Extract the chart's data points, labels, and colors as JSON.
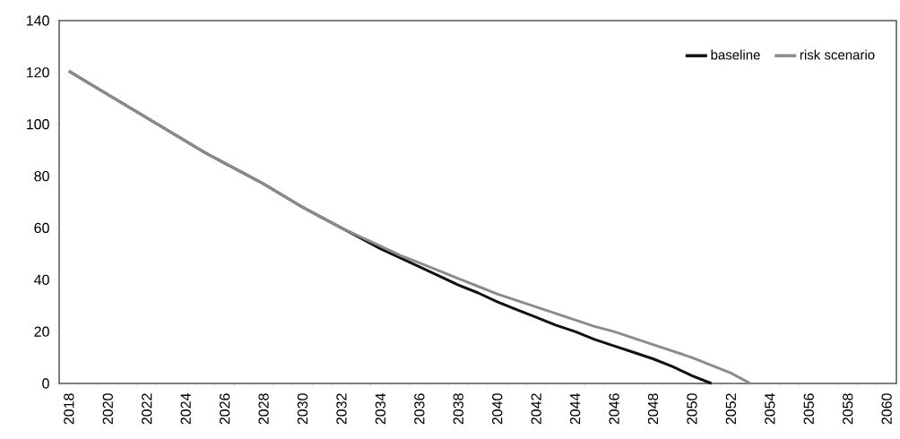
{
  "chart_data": {
    "type": "line",
    "categories": [
      "2018",
      null,
      "2020",
      null,
      "2022",
      null,
      "2024",
      null,
      "2026",
      null,
      "2028",
      null,
      "2030",
      null,
      "2032",
      null,
      "2034",
      null,
      "2036",
      null,
      "2038",
      null,
      "2040",
      null,
      "2042",
      null,
      "2044",
      null,
      "2046",
      null,
      "2048",
      null,
      "2050",
      null,
      "2052",
      null,
      "2054",
      null,
      "2056",
      null,
      "2058",
      null,
      "2060"
    ],
    "series": [
      {
        "name": "baseline",
        "color": "#111111",
        "values": [
          120.5,
          116,
          111.5,
          107,
          102.5,
          98,
          93.5,
          89,
          85,
          81,
          77,
          72.5,
          68,
          64,
          60,
          56,
          52,
          48.5,
          45,
          41.5,
          38,
          35,
          31.5,
          28.5,
          25.5,
          22.5,
          20,
          17,
          14.5,
          12,
          9.5,
          6.5,
          3,
          0,
          null,
          null,
          null,
          null,
          null,
          null,
          null,
          null,
          null
        ]
      },
      {
        "name": "risk scenario",
        "color": "#8c8c8c",
        "values": [
          120.5,
          116,
          111.5,
          107,
          102.5,
          98,
          93.5,
          89,
          85,
          81,
          77,
          72.5,
          68,
          64,
          60,
          56.5,
          53,
          49.5,
          46.5,
          43.5,
          40.5,
          37.5,
          34.5,
          32,
          29.5,
          27,
          24.5,
          22,
          20,
          17.5,
          15,
          12.5,
          10,
          7,
          4,
          0,
          null,
          null,
          null,
          null,
          null,
          null,
          null
        ]
      }
    ],
    "ylim": [
      0,
      140
    ],
    "yticks": [
      0,
      20,
      40,
      60,
      80,
      100,
      120,
      140
    ],
    "legend": "top right",
    "line_style": "solid"
  }
}
